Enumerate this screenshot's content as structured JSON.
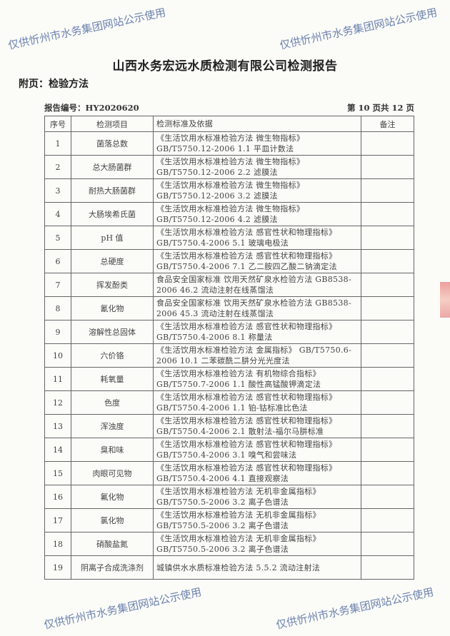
{
  "header": {
    "title": "山西水务宏远水质检测有限公司检测报告",
    "subtitle": "附页：检验方法",
    "report_no": "报告编号：HY2020620",
    "page": "第 10 页共 12 页"
  },
  "table": {
    "headers": [
      "序号",
      "检测项目",
      "检测标准及依据",
      "备注"
    ],
    "rows": [
      {
        "no": "1",
        "item": "菌落总数",
        "method": "《生活饮用水标准检验方法 微生物指标》 GB/T5750.12-2006 1.1 平皿计数法",
        "note": ""
      },
      {
        "no": "2",
        "item": "总大肠菌群",
        "method": "《生活饮用水标准检验方法 微生物指标》 GB/T5750.12-2006 2.2 滤膜法",
        "note": ""
      },
      {
        "no": "3",
        "item": "耐热大肠菌群",
        "method": "《生活饮用水标准检验方法 微生物指标》 GB/T5750.12-2006 3.2 滤膜法",
        "note": ""
      },
      {
        "no": "4",
        "item": "大肠埃希氏菌",
        "method": "《生活饮用水标准检验方法 微生物指标》 GB/T5750.12-2006 4.2 滤膜法",
        "note": ""
      },
      {
        "no": "5",
        "item": "pH 值",
        "method": "《生活饮用水标准检验方法 感官性状和物理指标》 GB/T5750.4-2006 5.1 玻璃电极法",
        "note": ""
      },
      {
        "no": "6",
        "item": "总硬度",
        "method": "《生活饮用水标准检验方法 感官性状和物理指标》 GB/T5750.4-2006 7.1 乙二胺四乙酸二钠滴定法",
        "note": ""
      },
      {
        "no": "7",
        "item": "挥发酚类",
        "method": "食品安全国家标准 饮用天然矿泉水检验方法 GB8538-2006 46.2 流动注射在线蒸馏法",
        "note": ""
      },
      {
        "no": "8",
        "item": "氰化物",
        "method": "食品安全国家标准 饮用天然矿泉水检验方法 GB8538-2006 45.3 流动注射在线蒸馏法",
        "note": ""
      },
      {
        "no": "9",
        "item": "溶解性总固体",
        "method": "《生活饮用水标准检验方法 感官性状和物理指标》 GB/T5750.4-2006 8.1 称量法",
        "note": ""
      },
      {
        "no": "10",
        "item": "六价铬",
        "method": "《生活饮用水标准检验方法 金属指标》 GB/T5750.6-2006 10.1 二苯碳酰二肼分光光度法",
        "note": ""
      },
      {
        "no": "11",
        "item": "耗氧量",
        "method": "《生活饮用水标准检验方法 有机物综合指标》 GB/T5750.7-2006 1.1 酸性高锰酸钾滴定法",
        "note": ""
      },
      {
        "no": "12",
        "item": "色度",
        "method": "《生活饮用水标准检验方法 感官性状和物理指标》 GB/T5750.4-2006 1.1 铂-钴标准比色法",
        "note": ""
      },
      {
        "no": "13",
        "item": "浑浊度",
        "method": "《生活饮用水标准检验方法 感官性状和物理指标》 GB/T5750.4-2006 2.1 散射法-福尔马肼标准",
        "note": ""
      },
      {
        "no": "14",
        "item": "臭和味",
        "method": "《生活饮用水标准检验方法 感官性状和物理指标》 GB/T5750.4-2006 3.1 嗅气和尝味法",
        "note": ""
      },
      {
        "no": "15",
        "item": "肉眼可见物",
        "method": "《生活饮用水标准检验方法 感官性状和物理指标》 GB/T5750.4-2006 4.1 直接观察法",
        "note": ""
      },
      {
        "no": "16",
        "item": "氟化物",
        "method": "《生活饮用水标准检验方法 无机非金属指标》 GB/T5750.5-2006 3.2 离子色谱法",
        "note": ""
      },
      {
        "no": "17",
        "item": "氯化物",
        "method": "《生活饮用水标准检验方法 无机非金属指标》 GB/T5750.5-2006 3.2 离子色谱法",
        "note": ""
      },
      {
        "no": "18",
        "item": "硝酸盐氮",
        "method": "《生活饮用水标准检验方法 无机非金属指标》 GB/T5750.5-2006 3.2 离子色谱法",
        "note": ""
      },
      {
        "no": "19",
        "item": "阴离子合成洗涤剂",
        "method": "城镇供水水质标准检验方法 5.5.2 流动注射法",
        "note": ""
      }
    ]
  },
  "watermark": "仅供忻州市水务集团网站公示使用"
}
